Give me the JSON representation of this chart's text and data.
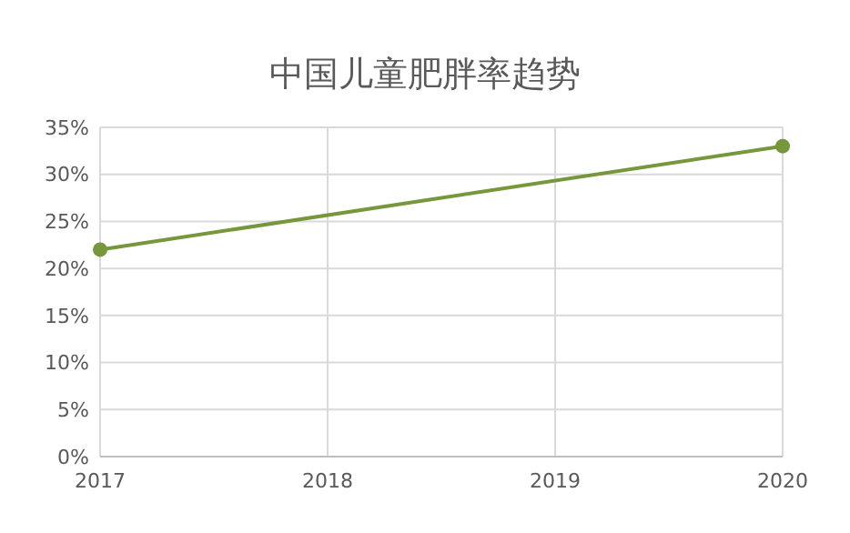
{
  "chart_data": {
    "type": "line",
    "title": "中国儿童肥胖率趋势",
    "x": [
      2017,
      2020
    ],
    "series": [
      {
        "color": "#77973d",
        "values": [
          22,
          33
        ]
      }
    ],
    "xlim": [
      2017,
      2020
    ],
    "xticks": [
      2017,
      2018,
      2019,
      2020
    ],
    "ylim": [
      0,
      35
    ],
    "yticks": [
      {
        "value": 0,
        "label": "0%"
      },
      {
        "value": 5,
        "label": "5%"
      },
      {
        "value": 10,
        "label": "10%"
      },
      {
        "value": 15,
        "label": "15%"
      },
      {
        "value": 20,
        "label": "20%"
      },
      {
        "value": 25,
        "label": "25%"
      },
      {
        "value": 30,
        "label": "30%"
      },
      {
        "value": 35,
        "label": "35%"
      }
    ],
    "grid": true,
    "marker": "circle",
    "line_style": "solid"
  }
}
